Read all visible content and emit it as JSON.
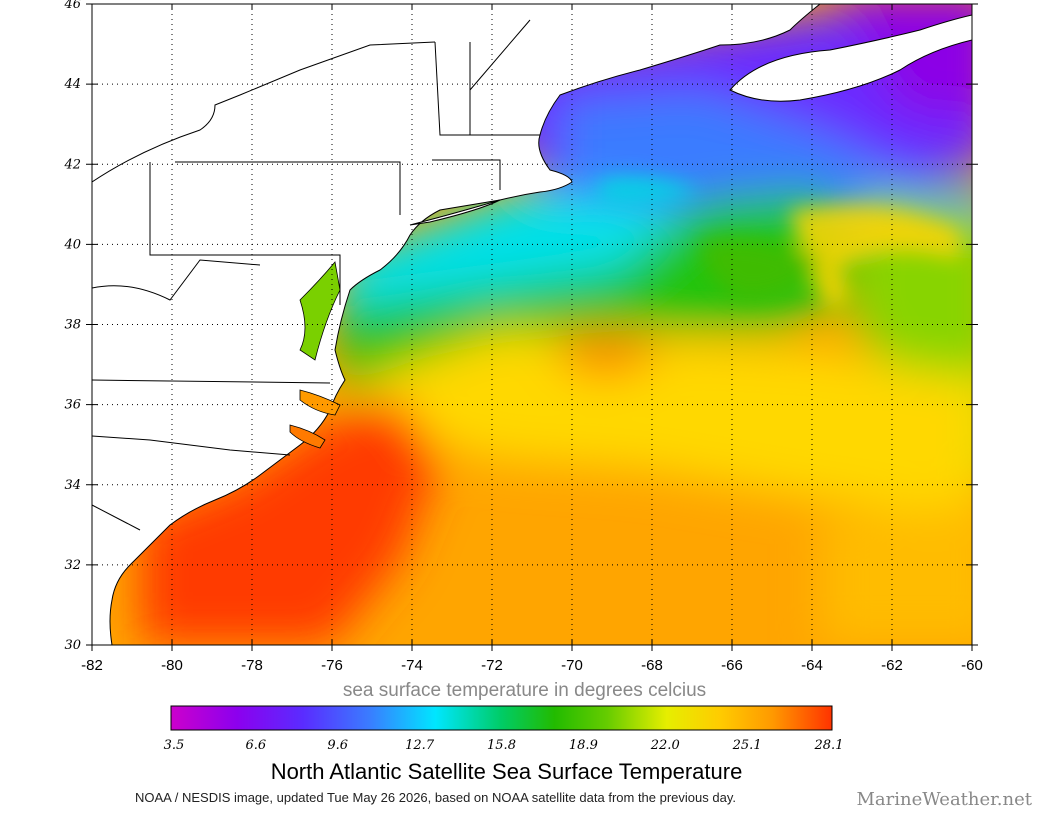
{
  "map": {
    "lat_ticks": [
      "30",
      "32",
      "34",
      "36",
      "38",
      "40",
      "42",
      "44",
      "46"
    ],
    "lon_ticks": [
      "-82",
      "-80",
      "-78",
      "-76",
      "-74",
      "-72",
      "-70",
      "-68",
      "-66",
      "-64",
      "-62",
      "-60"
    ],
    "lat_range": [
      30,
      46
    ],
    "lon_range": [
      -82,
      -60
    ],
    "grid": "dotted"
  },
  "colorbar": {
    "label": "sea surface temperature in degrees celcius",
    "ticks": [
      "3.5",
      "6.6",
      "9.6",
      "12.7",
      "15.8",
      "18.9",
      "22.0",
      "25.1",
      "28.1"
    ],
    "range": [
      3.5,
      28.1
    ],
    "colors": [
      "#cc00cc",
      "#8c00ee",
      "#5a2cff",
      "#3a7cff",
      "#00e6ff",
      "#00cc66",
      "#22bb00",
      "#66cc00",
      "#e6ee00",
      "#ffcc00",
      "#ff9900",
      "#ff3300"
    ]
  },
  "title": "North Atlantic Satellite Sea Surface Temperature",
  "footnote": "NOAA / NESDIS image, updated Tue May 26 2026, based on NOAA satellite data from the previous day.",
  "brand": "MarineWeather.net"
}
